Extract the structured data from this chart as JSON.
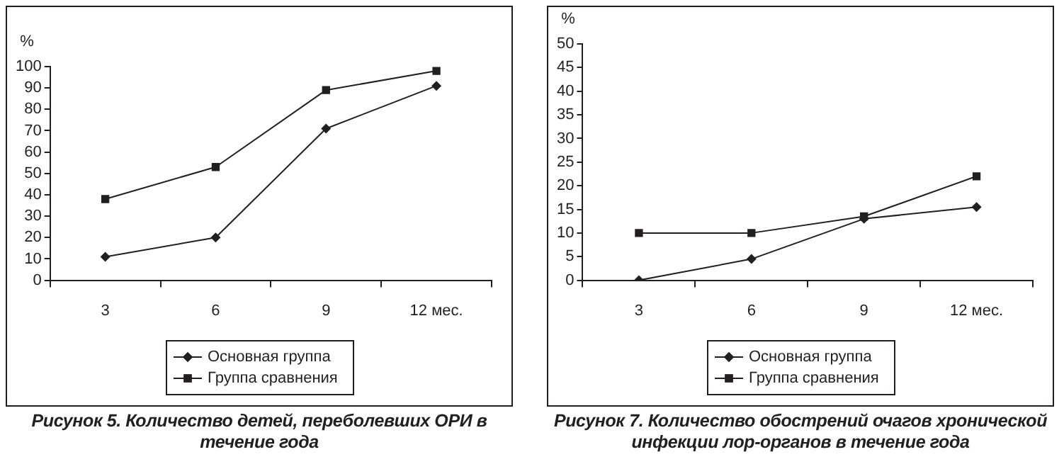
{
  "chart_data": [
    {
      "type": "line",
      "title": "Рисунок 5. Количество детей, переболевших ОРИ в течение года",
      "ylabel": "%",
      "categories": [
        "3",
        "6",
        "9",
        "12 мес."
      ],
      "series": [
        {
          "name": "Основная группа",
          "color": "#231f20",
          "marker": "diamond",
          "values": [
            11,
            20,
            71,
            91
          ]
        },
        {
          "name": "Группа сравнения",
          "color": "#231f20",
          "marker": "square",
          "values": [
            38,
            53,
            89,
            98
          ]
        }
      ],
      "ylim": [
        0,
        100
      ],
      "yticks": [
        0,
        10,
        20,
        30,
        40,
        50,
        60,
        70,
        80,
        90,
        100
      ],
      "grid": false,
      "legend": "bottom",
      "line_style": "solid"
    },
    {
      "type": "line",
      "title": "Рисунок 7. Количество обострений очагов хронической инфекции лор-органов в течение года",
      "ylabel": "%",
      "categories": [
        "3",
        "6",
        "9",
        "12 мес."
      ],
      "series": [
        {
          "name": "Основная группа",
          "color": "#231f20",
          "marker": "diamond",
          "values": [
            0,
            4.5,
            13,
            15.5
          ]
        },
        {
          "name": "Группа сравнения",
          "color": "#231f20",
          "marker": "square",
          "values": [
            10,
            10,
            13.5,
            22
          ]
        }
      ],
      "ylim": [
        0,
        50
      ],
      "yticks": [
        0,
        5,
        10,
        15,
        20,
        25,
        30,
        35,
        40,
        45,
        50
      ],
      "grid": false,
      "legend": "bottom",
      "line_style": "solid"
    }
  ]
}
